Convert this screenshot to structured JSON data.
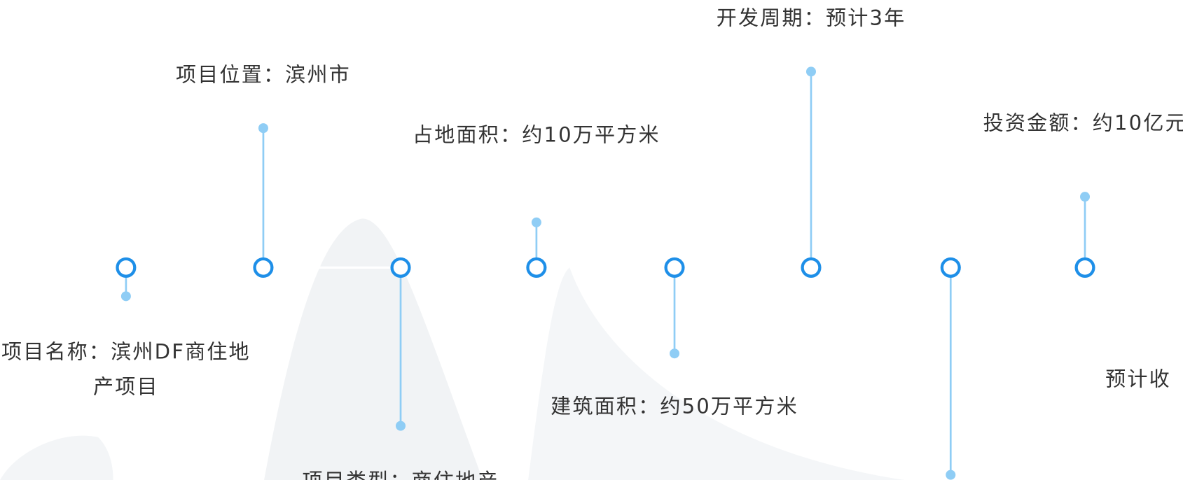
{
  "items": [
    {
      "label": "项目名称：滨州DF商住地产项目"
    },
    {
      "label": "项目位置：滨州市"
    },
    {
      "label": "项目类型：商住地产"
    },
    {
      "label": "占地面积：约10万平方米"
    },
    {
      "label": "建筑面积：约50万平方米"
    },
    {
      "label": "开发周期：预计3年"
    },
    {
      "label": "投资金额：约10亿元"
    },
    {
      "label": "预计收"
    }
  ]
}
